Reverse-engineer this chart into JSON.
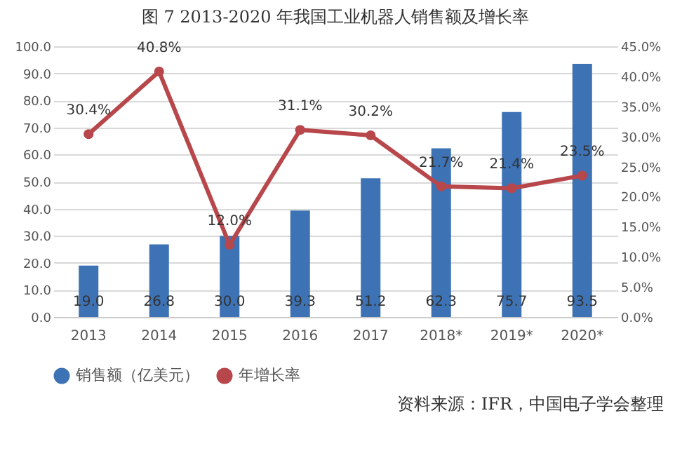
{
  "chart_data": {
    "type": "bar",
    "title": "图 7   2013-2020 年我国工业机器人销售额及增长率",
    "categories": [
      "2013",
      "2014",
      "2015",
      "2016",
      "2017",
      "2018*",
      "2019*",
      "2020*"
    ],
    "series": [
      {
        "name": "销售额（亿美元）",
        "color": "#3d72b5",
        "values": [
          19.0,
          26.8,
          30.0,
          39.3,
          51.2,
          62.3,
          75.7,
          93.5
        ],
        "value_labels": [
          "19.0",
          "26.8",
          "30.0",
          "39.3",
          "51.2",
          "62.3",
          "75.7",
          "93.5"
        ]
      },
      {
        "name": "年增长率",
        "type": "line",
        "axis": "y2",
        "color": "#b8474b",
        "values": [
          30.4,
          40.8,
          12.0,
          31.1,
          30.2,
          21.7,
          21.4,
          23.5
        ],
        "value_labels": [
          "30.4%",
          "40.8%",
          "12.0%",
          "31.1%",
          "30.2%",
          "21.7%",
          "21.4%",
          "23.5%"
        ]
      }
    ],
    "ylim": [
      0,
      100
    ],
    "yticks": [
      {
        "value": 0,
        "label": "0.0"
      },
      {
        "value": 10,
        "label": "10.0"
      },
      {
        "value": 20,
        "label": "20.0"
      },
      {
        "value": 30,
        "label": "30.0"
      },
      {
        "value": 40,
        "label": "40.0"
      },
      {
        "value": 50,
        "label": "50.0"
      },
      {
        "value": 60,
        "label": "60.0"
      },
      {
        "value": 70,
        "label": "70.0"
      },
      {
        "value": 80,
        "label": "80.0"
      },
      {
        "value": 90,
        "label": "90.0"
      },
      {
        "value": 100,
        "label": "100.0"
      }
    ],
    "y2lim": [
      0,
      45
    ],
    "y2ticks": [
      {
        "value": 0,
        "label": "0.0%"
      },
      {
        "value": 5,
        "label": "5.0%"
      },
      {
        "value": 10,
        "label": "10.0%"
      },
      {
        "value": 15,
        "label": "15.0%"
      },
      {
        "value": 20,
        "label": "20.0%"
      },
      {
        "value": 25,
        "label": "25.0%"
      },
      {
        "value": 30,
        "label": "30.0%"
      },
      {
        "value": 35,
        "label": "35.0%"
      },
      {
        "value": 40,
        "label": "40.0%"
      },
      {
        "value": 45,
        "label": "45.0%"
      }
    ],
    "grid": "y",
    "legend": "bottom",
    "marker": "circle",
    "annotations": [
      "资料来源：IFR，中国电子学会整理"
    ]
  }
}
